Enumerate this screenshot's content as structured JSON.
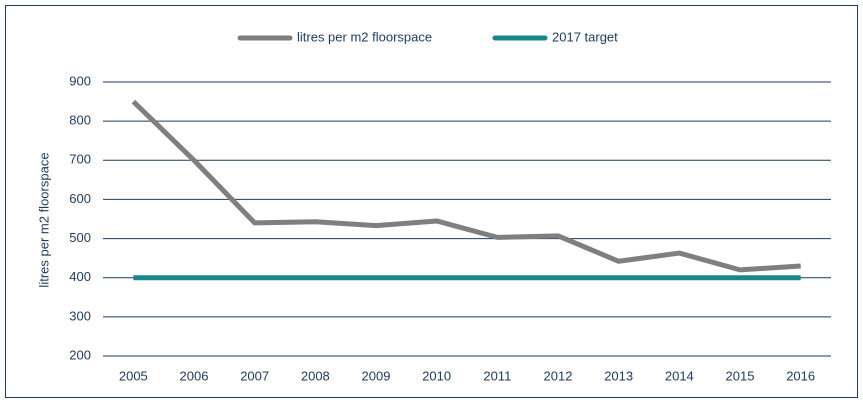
{
  "chart_data": {
    "type": "line",
    "categories": [
      "2005",
      "2006",
      "2007",
      "2008",
      "2009",
      "2010",
      "2011",
      "2012",
      "2013",
      "2014",
      "2015",
      "2016"
    ],
    "series": [
      {
        "name": "litres per m2 floorspace",
        "color": "#7f7f7f",
        "values": [
          850,
          700,
          540,
          543,
          533,
          545,
          503,
          507,
          442,
          463,
          420,
          430
        ]
      },
      {
        "name": "2017 target",
        "color": "#17868f",
        "values": [
          400,
          400,
          400,
          400,
          400,
          400,
          400,
          400,
          400,
          400,
          400,
          400
        ]
      }
    ],
    "ylabel": "litres per m2 floorspace",
    "ylim": [
      200,
      900
    ],
    "yticks": [
      200,
      300,
      400,
      500,
      600,
      700,
      800,
      900
    ],
    "grid": true,
    "legend": "top"
  }
}
